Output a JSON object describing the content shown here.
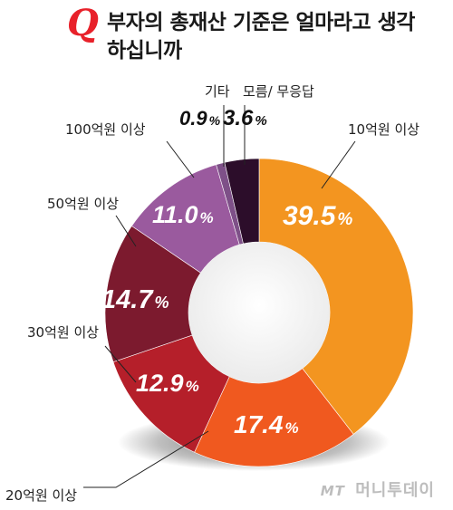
{
  "header": {
    "q_mark": "Q",
    "title": "부자의 총재산 기준은 얼마라고 생각하십니까"
  },
  "chart_data": {
    "type": "pie",
    "style": "donut",
    "categories": [
      "10억원 이상",
      "20억원 이상",
      "30억원 이상",
      "50억원 이상",
      "100억원 이상",
      "기타",
      "모름/ 무응답"
    ],
    "values": [
      39.5,
      17.4,
      12.9,
      14.7,
      11.0,
      0.9,
      3.6
    ],
    "value_labels": [
      "39.5",
      "17.4",
      "12.9",
      "14.7",
      "11.0",
      "0.9",
      "3.6"
    ],
    "unit": "%",
    "colors": [
      "#f39520",
      "#f0591f",
      "#b51f2a",
      "#7c1a2e",
      "#9a5a9e",
      "#7e5088",
      "#2c0d2a"
    ]
  },
  "watermark": {
    "mark": "MT",
    "text": "머니투데이"
  }
}
